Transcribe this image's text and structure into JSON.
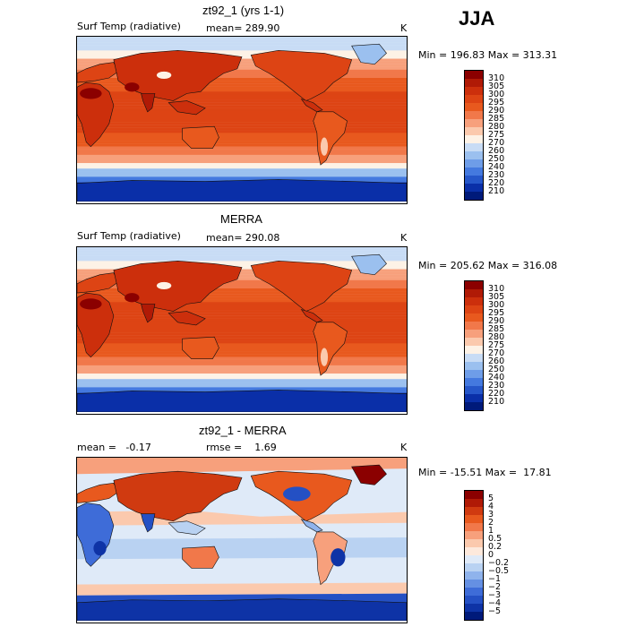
{
  "season": "JJA",
  "panels": [
    {
      "title": "zt92_1 (yrs 1-1)",
      "left_label": "Surf Temp (radiative)",
      "center_label": "mean= 289.90",
      "units": "K",
      "minmax": "Min = 196.83 Max = 313.31",
      "palette": "temp"
    },
    {
      "title": "MERRA",
      "left_label": "Surf Temp (radiative)",
      "center_label": "mean= 290.08",
      "units": "K",
      "minmax": "Min = 205.62 Max = 316.08",
      "palette": "temp"
    },
    {
      "title": "zt92_1 - MERRA",
      "left_label": "mean =   -0.17",
      "center_label": "rmse =    1.69",
      "units": "K",
      "minmax": "Min = -15.51 Max =  17.81",
      "palette": "diff"
    }
  ],
  "colorbars": {
    "temp": {
      "labels": [
        "310",
        "305",
        "300",
        "295",
        "290",
        "285",
        "280",
        "275",
        "270",
        "260",
        "250",
        "240",
        "230",
        "220",
        "210"
      ],
      "colors": [
        "#8b0000",
        "#b01a06",
        "#cc2f0c",
        "#dd4414",
        "#e8591e",
        "#f1784a",
        "#f7a07c",
        "#fbc9ad",
        "#fdf2e6",
        "#c8dcf5",
        "#9bc0ef",
        "#6e9de8",
        "#4479df",
        "#2556c9",
        "#0a2fa8",
        "#001a7a"
      ]
    },
    "diff": {
      "labels": [
        "5",
        "4",
        "3",
        "2",
        "1",
        "0.5",
        "0.2",
        "0",
        "−0.2",
        "−0.5",
        "−1",
        "−2",
        "−3",
        "−4",
        "−5"
      ],
      "colors": [
        "#8b0000",
        "#b01a06",
        "#d03a10",
        "#e8591e",
        "#f1784a",
        "#f7a07c",
        "#fbc9ad",
        "#fde9dc",
        "#dfeaf8",
        "#b9d2f2",
        "#8fb3ec",
        "#6590e3",
        "#3e6cd8",
        "#2450c4",
        "#0e33a6",
        "#001a7a"
      ]
    }
  }
}
